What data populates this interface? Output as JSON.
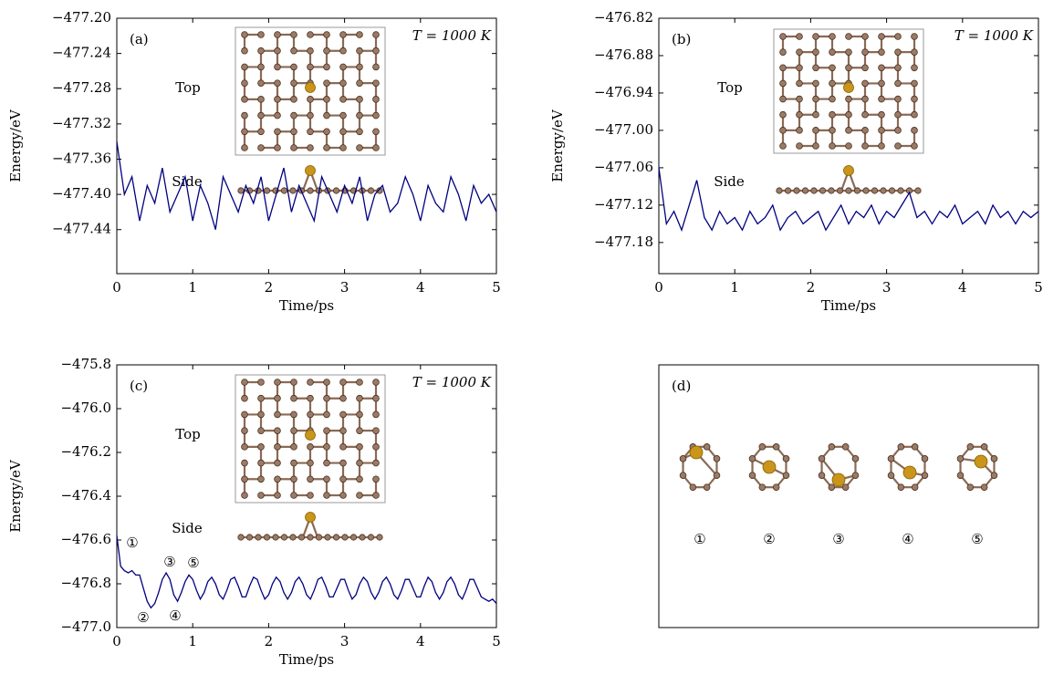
{
  "chart_data": [
    {
      "type": "line",
      "label": "(a)",
      "temperature": "T = 1000 K",
      "top_label": "Top",
      "side_label": "Side",
      "xlabel": "Time/ps",
      "ylabel": "Energy/eV",
      "color": "#000080",
      "xlim": [
        0,
        5
      ],
      "xticks": [
        0,
        1,
        2,
        3,
        4,
        5
      ],
      "ylim": [
        -477.49,
        -477.2
      ],
      "yticks": [
        {
          "value": -477.2,
          "label": "−477.20"
        },
        {
          "value": -477.24,
          "label": "−477.24"
        },
        {
          "value": -477.28,
          "label": "−477.28"
        },
        {
          "value": -477.32,
          "label": "−477.32"
        },
        {
          "value": -477.36,
          "label": "−477.36"
        },
        {
          "value": -477.4,
          "label": "−477.40"
        },
        {
          "value": -477.44,
          "label": "−477.44"
        }
      ],
      "x": [
        0,
        0.1,
        0.2,
        0.3,
        0.4,
        0.5,
        0.6,
        0.7,
        0.8,
        0.9,
        1,
        1.1,
        1.2,
        1.3,
        1.4,
        1.5,
        1.6,
        1.7,
        1.8,
        1.9,
        2,
        2.1,
        2.2,
        2.3,
        2.4,
        2.5,
        2.6,
        2.7,
        2.8,
        2.9,
        3,
        3.1,
        3.2,
        3.3,
        3.4,
        3.5,
        3.6,
        3.7,
        3.8,
        3.9,
        4,
        4.1,
        4.2,
        4.3,
        4.4,
        4.5,
        4.6,
        4.7,
        4.8,
        4.9,
        5
      ],
      "values": [
        -477.34,
        -477.4,
        -477.38,
        -477.43,
        -477.39,
        -477.41,
        -477.37,
        -477.42,
        -477.4,
        -477.38,
        -477.43,
        -477.39,
        -477.41,
        -477.44,
        -477.38,
        -477.4,
        -477.42,
        -477.39,
        -477.41,
        -477.38,
        -477.43,
        -477.4,
        -477.37,
        -477.42,
        -477.39,
        -477.41,
        -477.43,
        -477.38,
        -477.4,
        -477.42,
        -477.39,
        -477.41,
        -477.38,
        -477.43,
        -477.4,
        -477.39,
        -477.42,
        -477.41,
        -477.38,
        -477.4,
        -477.43,
        -477.39,
        -477.41,
        -477.42,
        -477.38,
        -477.4,
        -477.43,
        -477.39,
        -477.41,
        -477.4,
        -477.42
      ]
    },
    {
      "type": "line",
      "label": "(b)",
      "temperature": "T = 1000 K",
      "top_label": "Top",
      "side_label": "Side",
      "xlabel": "Time/ps",
      "ylabel": "Energy/eV",
      "color": "#000080",
      "xlim": [
        0,
        5
      ],
      "xticks": [
        0,
        1,
        2,
        3,
        4,
        5
      ],
      "ylim": [
        -477.23,
        -476.82
      ],
      "yticks": [
        {
          "value": -476.82,
          "label": "−476.82"
        },
        {
          "value": -476.88,
          "label": "−476.88"
        },
        {
          "value": -476.94,
          "label": "−476.94"
        },
        {
          "value": -477.0,
          "label": "−477.00"
        },
        {
          "value": -477.06,
          "label": "−477.06"
        },
        {
          "value": -477.12,
          "label": "−477.12"
        },
        {
          "value": -477.18,
          "label": "−477.18"
        }
      ],
      "x": [
        0,
        0.1,
        0.2,
        0.3,
        0.4,
        0.5,
        0.6,
        0.7,
        0.8,
        0.9,
        1,
        1.1,
        1.2,
        1.3,
        1.4,
        1.5,
        1.6,
        1.7,
        1.8,
        1.9,
        2,
        2.1,
        2.2,
        2.3,
        2.4,
        2.5,
        2.6,
        2.7,
        2.8,
        2.9,
        3,
        3.1,
        3.2,
        3.3,
        3.4,
        3.5,
        3.6,
        3.7,
        3.8,
        3.9,
        4,
        4.1,
        4.2,
        4.3,
        4.4,
        4.5,
        4.6,
        4.7,
        4.8,
        4.9,
        5
      ],
      "values": [
        -477.06,
        -477.15,
        -477.13,
        -477.16,
        -477.12,
        -477.08,
        -477.14,
        -477.16,
        -477.13,
        -477.15,
        -477.14,
        -477.16,
        -477.13,
        -477.15,
        -477.14,
        -477.12,
        -477.16,
        -477.14,
        -477.13,
        -477.15,
        -477.14,
        -477.13,
        -477.16,
        -477.14,
        -477.12,
        -477.15,
        -477.13,
        -477.14,
        -477.12,
        -477.15,
        -477.13,
        -477.14,
        -477.12,
        -477.1,
        -477.14,
        -477.13,
        -477.15,
        -477.13,
        -477.14,
        -477.12,
        -477.15,
        -477.14,
        -477.13,
        -477.15,
        -477.12,
        -477.14,
        -477.13,
        -477.15,
        -477.13,
        -477.14,
        -477.13
      ]
    },
    {
      "type": "line",
      "label": "(c)",
      "temperature": "T = 1000 K",
      "top_label": "Top",
      "side_label": "Side",
      "xlabel": "Time/ps",
      "ylabel": "Energy/eV",
      "color": "#000080",
      "annotations": [
        "①",
        "②",
        "③",
        "④",
        "⑤"
      ],
      "xlim": [
        0,
        5
      ],
      "xticks": [
        0,
        1,
        2,
        3,
        4,
        5
      ],
      "ylim": [
        -477.0,
        -475.8
      ],
      "yticks": [
        {
          "value": -475.8,
          "label": "−475.8"
        },
        {
          "value": -476.0,
          "label": "−476.0"
        },
        {
          "value": -476.2,
          "label": "−476.2"
        },
        {
          "value": -476.4,
          "label": "−476.4"
        },
        {
          "value": -476.6,
          "label": "−476.6"
        },
        {
          "value": -476.8,
          "label": "−476.8"
        },
        {
          "value": -477.0,
          "label": "−477.0"
        }
      ],
      "x": [
        0,
        0.05,
        0.1,
        0.15,
        0.2,
        0.25,
        0.3,
        0.35,
        0.4,
        0.45,
        0.5,
        0.55,
        0.6,
        0.65,
        0.7,
        0.75,
        0.8,
        0.85,
        0.9,
        0.95,
        1,
        1.05,
        1.1,
        1.15,
        1.2,
        1.25,
        1.3,
        1.35,
        1.4,
        1.45,
        1.5,
        1.55,
        1.6,
        1.65,
        1.7,
        1.75,
        1.8,
        1.85,
        1.9,
        1.95,
        2,
        2.05,
        2.1,
        2.15,
        2.2,
        2.25,
        2.3,
        2.35,
        2.4,
        2.45,
        2.5,
        2.55,
        2.6,
        2.65,
        2.7,
        2.75,
        2.8,
        2.85,
        2.9,
        2.95,
        3,
        3.05,
        3.1,
        3.15,
        3.2,
        3.25,
        3.3,
        3.35,
        3.4,
        3.45,
        3.5,
        3.55,
        3.6,
        3.65,
        3.7,
        3.75,
        3.8,
        3.85,
        3.9,
        3.95,
        4,
        4.05,
        4.1,
        4.15,
        4.2,
        4.25,
        4.3,
        4.35,
        4.4,
        4.45,
        4.5,
        4.55,
        4.6,
        4.65,
        4.7,
        4.75,
        4.8,
        4.85,
        4.9,
        4.95,
        5
      ],
      "values": [
        -476.58,
        -476.72,
        -476.74,
        -476.75,
        -476.74,
        -476.76,
        -476.76,
        -476.82,
        -476.88,
        -476.91,
        -476.89,
        -476.84,
        -476.78,
        -476.75,
        -476.78,
        -476.85,
        -476.88,
        -476.84,
        -476.79,
        -476.76,
        -476.78,
        -476.83,
        -476.87,
        -476.84,
        -476.79,
        -476.77,
        -476.8,
        -476.85,
        -476.87,
        -476.83,
        -476.78,
        -476.77,
        -476.81,
        -476.86,
        -476.86,
        -476.81,
        -476.77,
        -476.78,
        -476.83,
        -476.87,
        -476.85,
        -476.8,
        -476.77,
        -476.79,
        -476.84,
        -476.87,
        -476.84,
        -476.79,
        -476.77,
        -476.8,
        -476.85,
        -476.87,
        -476.83,
        -476.78,
        -476.77,
        -476.81,
        -476.86,
        -476.86,
        -476.82,
        -476.78,
        -476.78,
        -476.83,
        -476.87,
        -476.85,
        -476.8,
        -476.77,
        -476.79,
        -476.84,
        -476.87,
        -476.84,
        -476.79,
        -476.77,
        -476.8,
        -476.85,
        -476.87,
        -476.83,
        -476.78,
        -476.78,
        -476.82,
        -476.86,
        -476.86,
        -476.81,
        -476.77,
        -476.79,
        -476.84,
        -476.87,
        -476.84,
        -476.79,
        -476.77,
        -476.8,
        -476.85,
        -476.87,
        -476.83,
        -476.78,
        -476.78,
        -476.82,
        -476.86,
        -476.87,
        -476.88,
        -476.87,
        -476.89
      ]
    },
    {
      "type": "diagram",
      "label": "(d)",
      "structure_labels": [
        "①",
        "②",
        "③",
        "④",
        "⑤"
      ]
    }
  ]
}
